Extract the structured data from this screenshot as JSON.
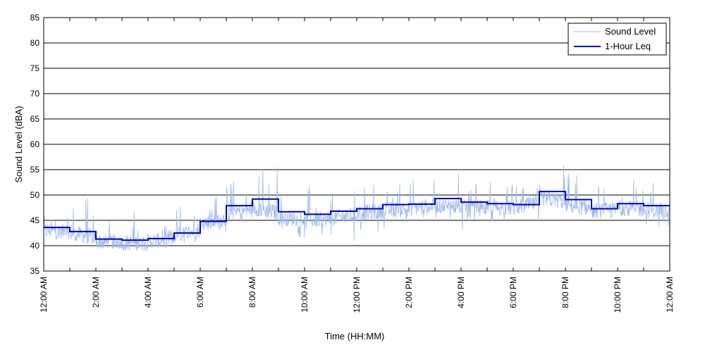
{
  "chart_data": {
    "type": "line",
    "title": "",
    "xlabel": "Time (HH:MM)",
    "ylabel": "Sound Level (dBA)",
    "xlim": [
      0,
      24
    ],
    "ylim": [
      35,
      85
    ],
    "y_ticks": [
      35,
      40,
      45,
      50,
      55,
      60,
      65,
      70,
      75,
      80,
      85
    ],
    "x_ticks": [
      {
        "hour": 0,
        "label": "12:00 AM"
      },
      {
        "hour": 2,
        "label": "2:00 AM"
      },
      {
        "hour": 4,
        "label": "4:00 AM"
      },
      {
        "hour": 6,
        "label": "6:00 AM"
      },
      {
        "hour": 8,
        "label": "8:00 AM"
      },
      {
        "hour": 10,
        "label": "10:00 AM"
      },
      {
        "hour": 12,
        "label": "12:00 PM"
      },
      {
        "hour": 14,
        "label": "2:00 PM"
      },
      {
        "hour": 16,
        "label": "4:00 PM"
      },
      {
        "hour": 18,
        "label": "6:00 PM"
      },
      {
        "hour": 20,
        "label": "8:00 PM"
      },
      {
        "hour": 22,
        "label": "10:00 PM"
      },
      {
        "hour": 24,
        "label": "12:00 AM"
      }
    ],
    "grid": "horizontal",
    "legend_position": "top-right",
    "series": [
      {
        "name": "Sound Level",
        "color": "#9db9ee",
        "style": "thin-noisy",
        "hourly_mean": [
          43.0,
          42.5,
          40.8,
          40.5,
          40.8,
          42.0,
          44.3,
          46.5,
          47.5,
          45.5,
          45.0,
          45.5,
          46.5,
          47.0,
          47.5,
          48.0,
          47.5,
          47.5,
          47.5,
          49.5,
          48.0,
          46.8,
          47.5,
          47.0
        ],
        "peak_max": [
          47.5,
          49.5,
          46.0,
          47.0,
          44.0,
          48.5,
          50.5,
          53.0,
          56.0,
          51.5,
          52.0,
          51.5,
          53.5,
          54.0,
          53.5,
          55.5,
          53.5,
          53.5,
          54.5,
          57.0,
          54.5,
          52.0,
          55.0,
          57.5
        ],
        "min": [
          40.5,
          40.0,
          39.5,
          39.0,
          39.5,
          40.5,
          42.5,
          43.5,
          43.5,
          41.5,
          41.0,
          40.5,
          42.0,
          43.0,
          43.5,
          44.0,
          43.0,
          44.0,
          44.5,
          45.5,
          45.0,
          45.0,
          44.5,
          43.5
        ]
      },
      {
        "name": "1-Hour Leq",
        "color": "#0000c8",
        "style": "step",
        "x": [
          0,
          1,
          2,
          3,
          4,
          5,
          6,
          7,
          8,
          9,
          10,
          11,
          12,
          13,
          14,
          15,
          16,
          17,
          18,
          19,
          20,
          21,
          22,
          23
        ],
        "values": [
          43.6,
          42.8,
          41.3,
          41.1,
          41.4,
          42.5,
          44.8,
          47.9,
          49.2,
          46.7,
          46.2,
          46.8,
          47.3,
          48.1,
          48.2,
          49.3,
          48.6,
          48.3,
          48.1,
          50.7,
          49.1,
          47.3,
          48.3,
          47.9
        ]
      }
    ]
  }
}
